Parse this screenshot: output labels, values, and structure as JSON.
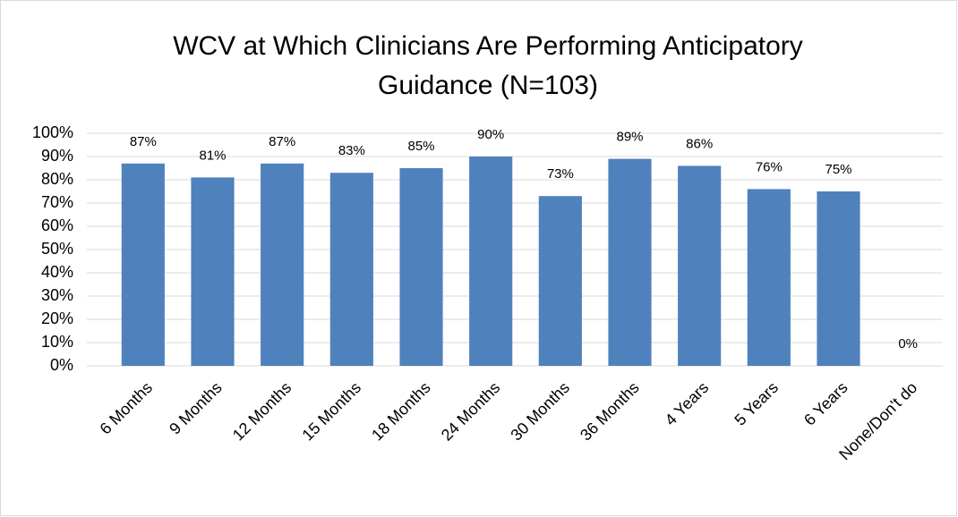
{
  "chart_data": {
    "type": "bar",
    "title": "WCV at Which Clinicians Are Performing Anticipatory Guidance (N=103)",
    "categories": [
      "6 Months",
      "9 Months",
      "12 Months",
      "15 Months",
      "18 Months",
      "24 Months",
      "30 Months",
      "36 Months",
      "4 Years",
      "5 Years",
      "6 Years",
      "None/Don't do"
    ],
    "values": [
      87,
      81,
      87,
      83,
      85,
      90,
      73,
      89,
      86,
      76,
      75,
      0
    ],
    "value_labels": [
      "87%",
      "81%",
      "87%",
      "83%",
      "85%",
      "90%",
      "73%",
      "89%",
      "86%",
      "76%",
      "75%",
      "0%"
    ],
    "color": "#4f81bd",
    "ylim": [
      0,
      100
    ],
    "yticks": [
      {
        "value": 0,
        "label": "0%"
      },
      {
        "value": 10,
        "label": "10%"
      },
      {
        "value": 20,
        "label": "20%"
      },
      {
        "value": 30,
        "label": "30%"
      },
      {
        "value": 40,
        "label": "40%"
      },
      {
        "value": 50,
        "label": "50%"
      },
      {
        "value": 60,
        "label": "60%"
      },
      {
        "value": 70,
        "label": "70%"
      },
      {
        "value": 80,
        "label": "80%"
      },
      {
        "value": 90,
        "label": "90%"
      },
      {
        "value": 100,
        "label": "100%"
      }
    ],
    "grid": true
  }
}
